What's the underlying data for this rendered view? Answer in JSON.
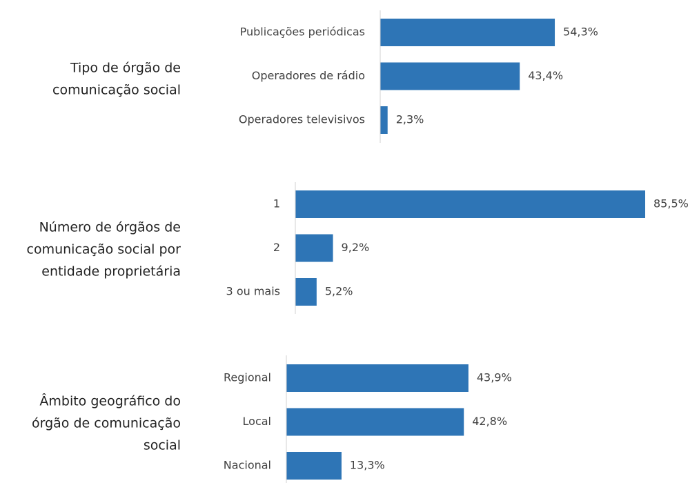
{
  "chart_data": [
    {
      "type": "bar",
      "orientation": "horizontal",
      "title": [
        "Tipo de órgão de",
        "comunicação social"
      ],
      "categories": [
        "Publicações periódicas",
        "Operadores de rádio",
        "Operadores televisivos"
      ],
      "values": [
        54.3,
        43.4,
        2.3
      ],
      "value_labels": [
        "54,3%",
        "43,4%",
        "2,3%"
      ],
      "color": "#2e75b6"
    },
    {
      "type": "bar",
      "orientation": "horizontal",
      "title": [
        "Número de órgãos de",
        "comunicação social por",
        "entidade proprietária"
      ],
      "categories": [
        "1",
        "2",
        "3 ou mais"
      ],
      "values": [
        85.5,
        9.2,
        5.2
      ],
      "value_labels": [
        "85,5%",
        "9,2%",
        "5,2%"
      ],
      "color": "#2e75b6"
    },
    {
      "type": "bar",
      "orientation": "horizontal",
      "title": [
        "Âmbito geográfico do",
        "órgão de comunicação",
        "social"
      ],
      "categories": [
        "Regional",
        "Local",
        "Nacional"
      ],
      "values": [
        43.9,
        42.8,
        13.3
      ],
      "value_labels": [
        "43,9%",
        "42,8%",
        "13,3%"
      ],
      "color": "#2e75b6"
    }
  ]
}
